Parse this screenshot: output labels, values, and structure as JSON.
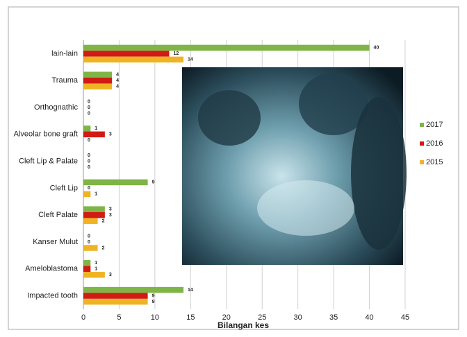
{
  "chart_data": {
    "type": "hbar",
    "x_label": "Bilangan kes",
    "categories": [
      "lain-lain",
      "Trauma",
      "Orthognathic",
      "Alveolar bone graft",
      "Cleft Lip & Palate",
      "Cleft Lip",
      "Cleft Palate",
      "Kanser Mulut",
      "Ameloblastoma",
      "Impacted tooth"
    ],
    "series": [
      {
        "name": "2017",
        "color": "#7fb446",
        "values": [
          40,
          4,
          0,
          1,
          0,
          9,
          3,
          0,
          1,
          14
        ]
      },
      {
        "name": "2016",
        "color": "#d11a14",
        "values": [
          12,
          4,
          0,
          3,
          0,
          0,
          3,
          0,
          1,
          9
        ]
      },
      {
        "name": "2015",
        "color": "#f0b323",
        "values": [
          14,
          4,
          0,
          0,
          0,
          1,
          2,
          2,
          3,
          9
        ]
      }
    ],
    "xlim": [
      0,
      45
    ],
    "xticks": [
      0,
      5,
      10,
      15,
      20,
      25,
      30,
      35,
      40,
      45
    ],
    "grid": true,
    "legend": "right"
  }
}
